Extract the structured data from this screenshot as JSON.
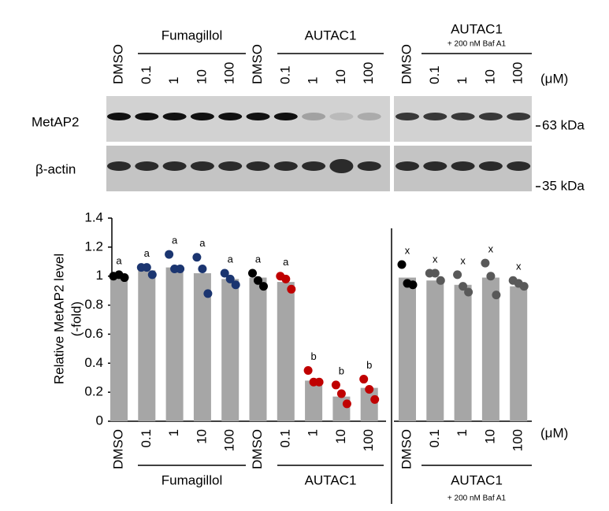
{
  "chart_data": {
    "type": "bar",
    "categories": [
      "DMSO",
      "0.1",
      "1",
      "10",
      "100",
      "DMSO",
      "0.1",
      "1",
      "10",
      "100",
      "DMSO",
      "0.1",
      "1",
      "10",
      "100"
    ],
    "values": [
      1.0,
      1.04,
      1.06,
      1.02,
      0.98,
      0.99,
      0.96,
      0.28,
      0.17,
      0.23,
      0.99,
      0.97,
      0.94,
      0.99,
      0.93
    ],
    "points": [
      [
        1.0,
        1.01,
        0.99
      ],
      [
        1.06,
        1.06,
        1.01
      ],
      [
        1.15,
        1.05,
        1.05
      ],
      [
        1.13,
        1.05,
        0.88
      ],
      [
        1.02,
        0.98,
        0.94
      ],
      [
        1.02,
        0.97,
        0.93
      ],
      [
        1.0,
        0.98,
        0.91
      ],
      [
        0.35,
        0.27,
        0.27
      ],
      [
        0.25,
        0.19,
        0.12
      ],
      [
        0.29,
        0.22,
        0.15
      ],
      [
        1.08,
        0.95,
        0.94
      ],
      [
        1.02,
        1.02,
        0.97
      ],
      [
        1.01,
        0.93,
        0.89
      ],
      [
        1.09,
        1.0,
        0.87
      ],
      [
        0.97,
        0.95,
        0.93
      ]
    ],
    "point_colors": [
      "#000000",
      "#1b3570",
      "#1b3570",
      "#1b3570",
      "#1b3570",
      "#000000",
      "#c00000",
      "#c00000",
      "#c00000",
      "#c00000",
      "#000000",
      "#595959",
      "#595959",
      "#595959",
      "#595959"
    ],
    "significance": [
      "a",
      "a",
      "a",
      "a",
      "a",
      "a",
      "a",
      "b",
      "b",
      "b",
      "x",
      "x",
      "x",
      "x",
      "x"
    ],
    "color": "#a6a6a6",
    "groups": [
      "Fumagillol",
      "AUTAC1",
      "AUTAC1"
    ],
    "group_note": "+ 200 nM Baf A1",
    "unit": "(μM)",
    "y_label": [
      "Relative MetAP2 level",
      "(-fold)"
    ],
    "ylim": [
      0,
      1.4
    ],
    "yticks": [
      0,
      0.2,
      0.4,
      0.6,
      0.8,
      1,
      1.2,
      1.4
    ]
  },
  "blot": {
    "rows": [
      "MetAP2",
      "β-actin"
    ],
    "markers": [
      "63 kDa",
      "35 kDa"
    ]
  }
}
